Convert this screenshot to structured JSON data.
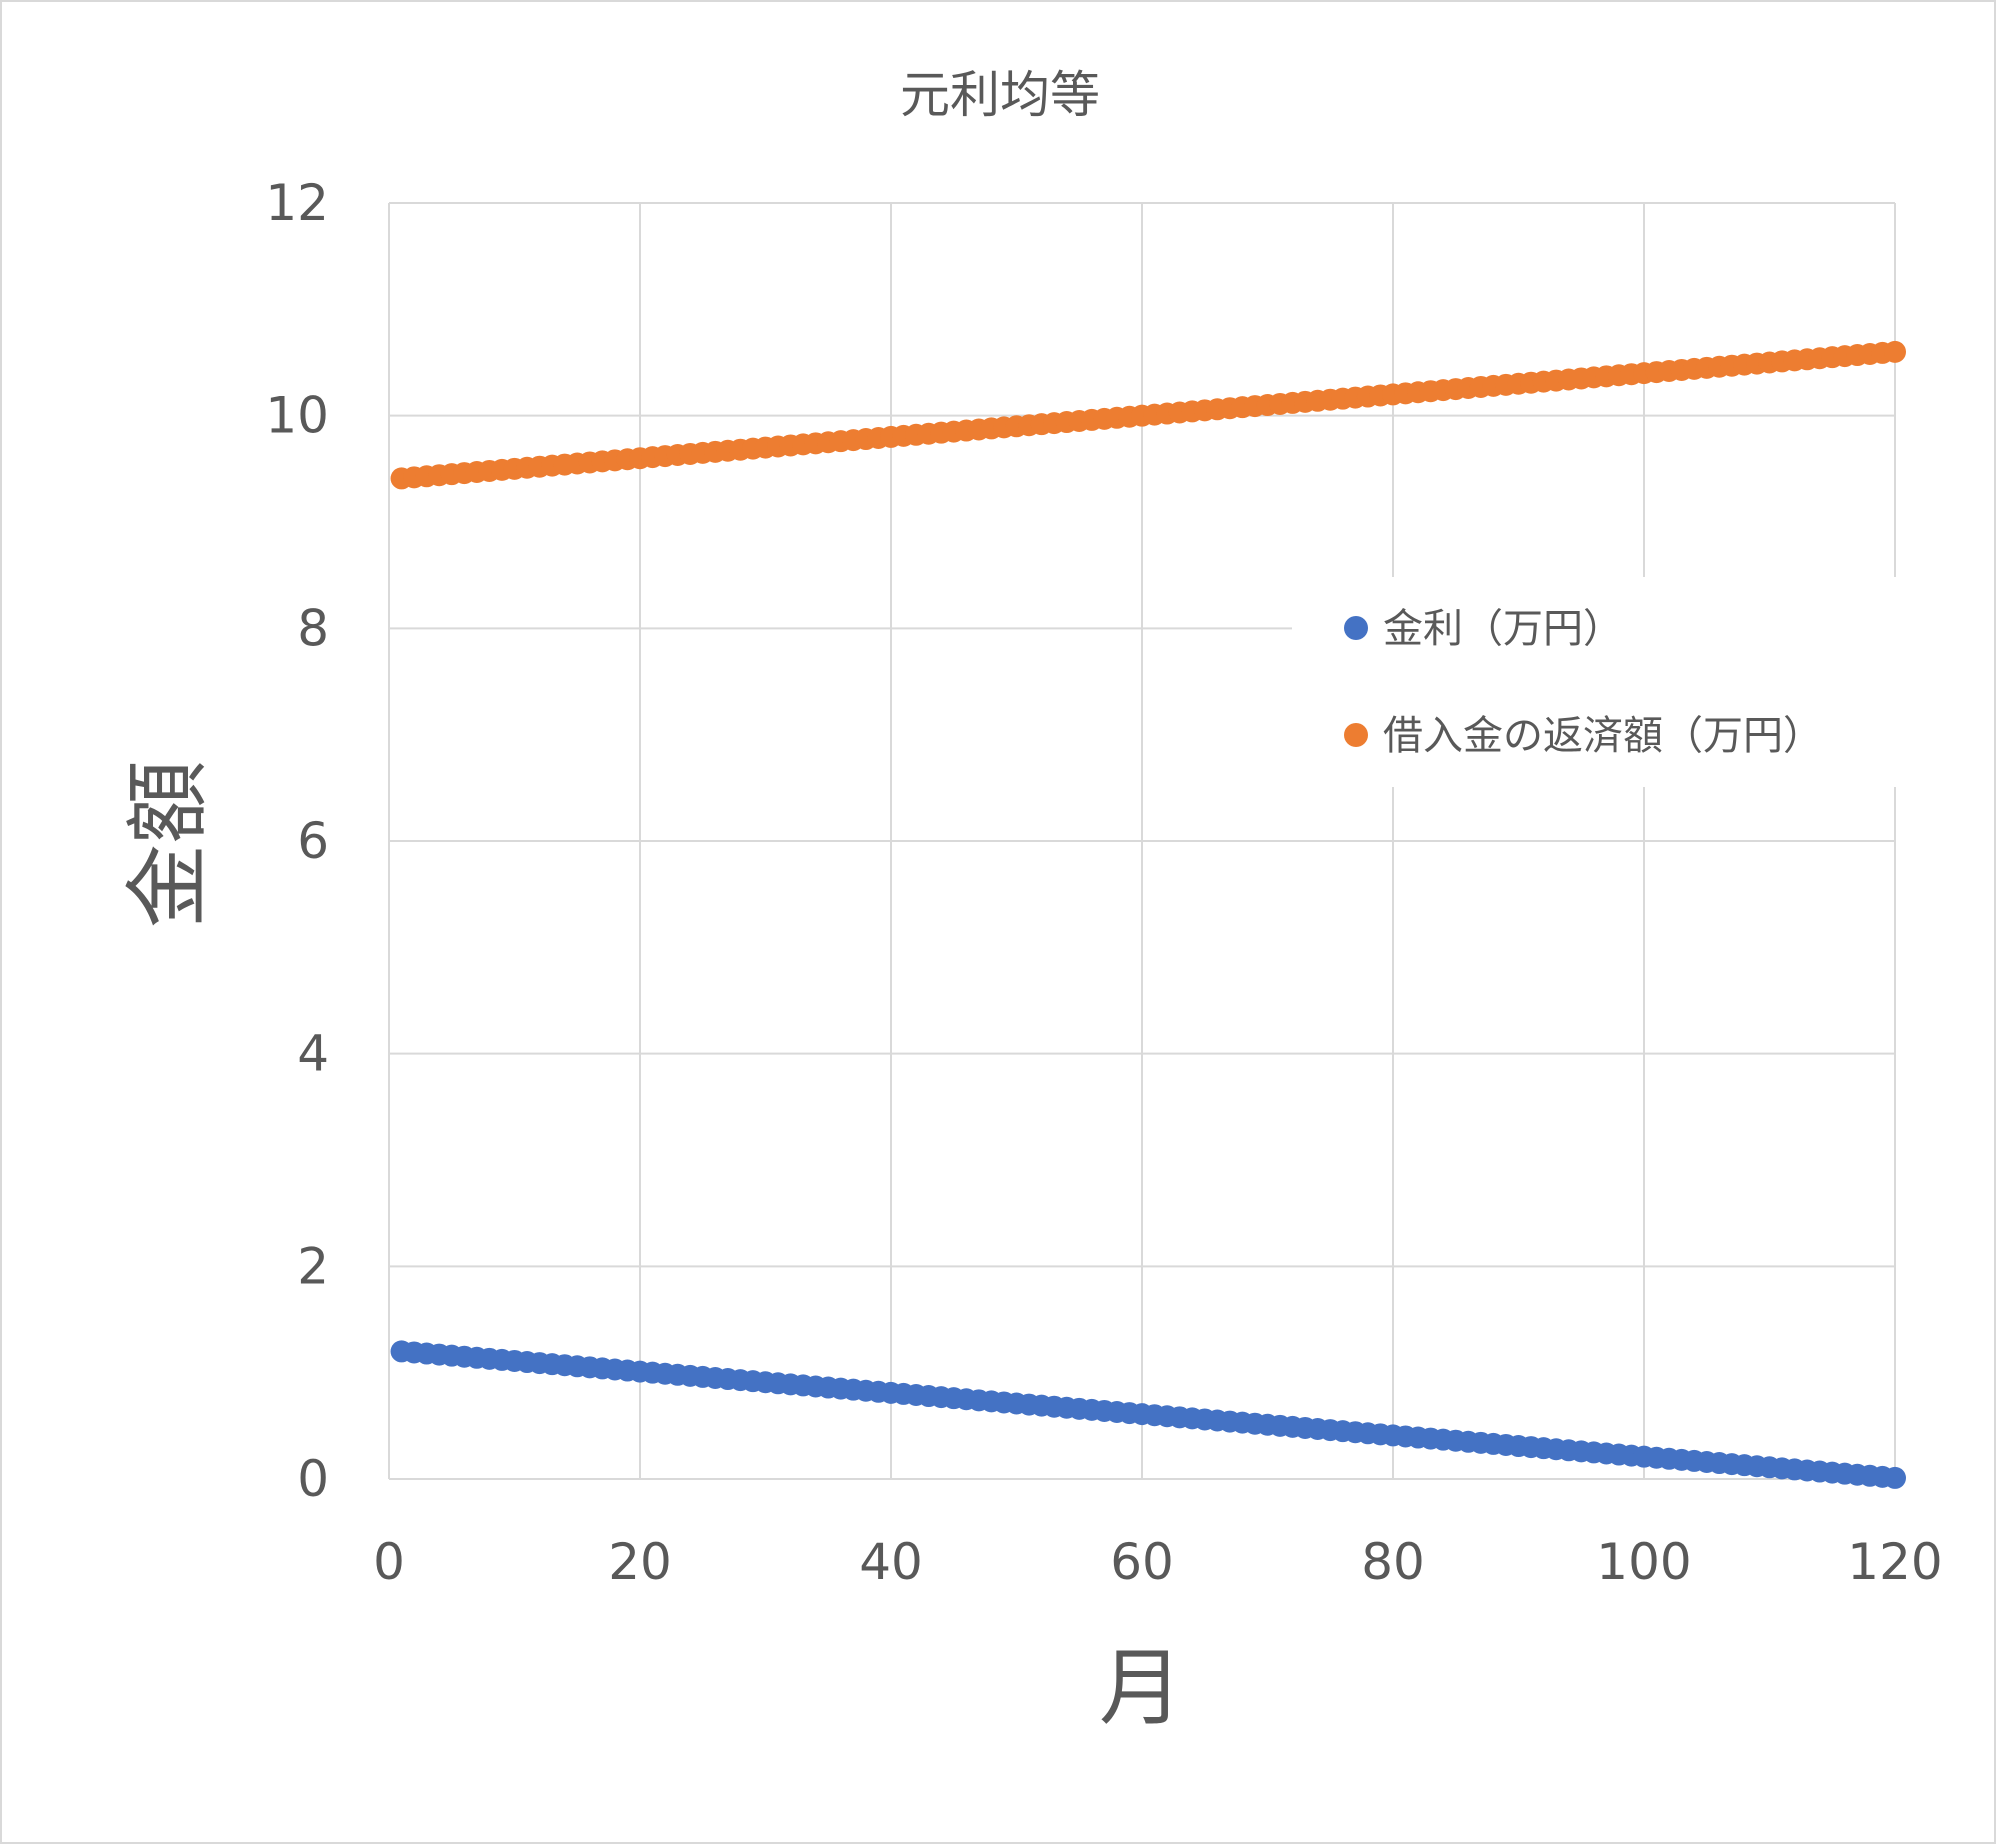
{
  "chart_data": {
    "type": "scatter",
    "title": "元利均等",
    "xlabel": "月",
    "ylabel": "金額",
    "xlim": [
      0,
      120
    ],
    "ylim": [
      0,
      12
    ],
    "x_ticks": [
      0,
      20,
      40,
      60,
      80,
      100,
      120
    ],
    "y_ticks": [
      0,
      2,
      4,
      6,
      8,
      10,
      12
    ],
    "x_tick_labels": [
      "0",
      "20",
      "40",
      "60",
      "80",
      "100",
      "120"
    ],
    "y_tick_labels": [
      "0",
      "2",
      "4",
      "6",
      "8",
      "10",
      "12"
    ],
    "grid": true,
    "legend_position": "right",
    "x": [
      1,
      2,
      3,
      4,
      5,
      6,
      7,
      8,
      9,
      10,
      11,
      12,
      13,
      14,
      15,
      16,
      17,
      18,
      19,
      20,
      21,
      22,
      23,
      24,
      25,
      26,
      27,
      28,
      29,
      30,
      31,
      32,
      33,
      34,
      35,
      36,
      37,
      38,
      39,
      40,
      41,
      42,
      43,
      44,
      45,
      46,
      47,
      48,
      49,
      50,
      51,
      52,
      53,
      54,
      55,
      56,
      57,
      58,
      59,
      60,
      61,
      62,
      63,
      64,
      65,
      66,
      67,
      68,
      69,
      70,
      71,
      72,
      73,
      74,
      75,
      76,
      77,
      78,
      79,
      80,
      81,
      82,
      83,
      84,
      85,
      86,
      87,
      88,
      89,
      90,
      91,
      92,
      93,
      94,
      95,
      96,
      97,
      98,
      99,
      100,
      101,
      102,
      103,
      104,
      105,
      106,
      107,
      108,
      109,
      110,
      111,
      112,
      113,
      114,
      115,
      116,
      117,
      118,
      119,
      120
    ],
    "series": [
      {
        "name": "金利（万円）",
        "color": "#4472c4",
        "values": [
          1.2,
          1.19,
          1.18,
          1.17,
          1.16,
          1.15,
          1.14,
          1.13,
          1.12,
          1.11,
          1.1,
          1.09,
          1.08,
          1.07,
          1.06,
          1.05,
          1.04,
          1.03,
          1.02,
          1.01,
          1.0,
          0.99,
          0.98,
          0.97,
          0.96,
          0.95,
          0.94,
          0.93,
          0.92,
          0.91,
          0.9,
          0.89,
          0.88,
          0.87,
          0.86,
          0.85,
          0.84,
          0.83,
          0.82,
          0.81,
          0.8,
          0.79,
          0.78,
          0.77,
          0.76,
          0.75,
          0.74,
          0.73,
          0.72,
          0.71,
          0.7,
          0.69,
          0.68,
          0.67,
          0.66,
          0.65,
          0.64,
          0.63,
          0.62,
          0.61,
          0.6,
          0.59,
          0.58,
          0.57,
          0.56,
          0.55,
          0.54,
          0.53,
          0.52,
          0.51,
          0.5,
          0.49,
          0.48,
          0.47,
          0.46,
          0.45,
          0.44,
          0.43,
          0.42,
          0.41,
          0.4,
          0.39,
          0.38,
          0.37,
          0.36,
          0.35,
          0.34,
          0.33,
          0.32,
          0.31,
          0.3,
          0.29,
          0.28,
          0.27,
          0.26,
          0.25,
          0.24,
          0.23,
          0.22,
          0.21,
          0.2,
          0.19,
          0.18,
          0.17,
          0.16,
          0.15,
          0.14,
          0.13,
          0.12,
          0.11,
          0.1,
          0.09,
          0.08,
          0.07,
          0.06,
          0.05,
          0.04,
          0.03,
          0.02,
          0.01
        ]
      },
      {
        "name": "借入金の返済額（万円）",
        "color": "#ed7d31",
        "values": [
          9.41,
          9.42,
          9.43,
          9.44,
          9.45,
          9.46,
          9.47,
          9.48,
          9.49,
          9.5,
          9.51,
          9.52,
          9.53,
          9.54,
          9.55,
          9.56,
          9.57,
          9.58,
          9.59,
          9.6,
          9.61,
          9.62,
          9.63,
          9.64,
          9.65,
          9.66,
          9.67,
          9.68,
          9.69,
          9.7,
          9.71,
          9.72,
          9.73,
          9.74,
          9.75,
          9.76,
          9.77,
          9.78,
          9.79,
          9.8,
          9.81,
          9.82,
          9.83,
          9.84,
          9.85,
          9.86,
          9.87,
          9.88,
          9.89,
          9.9,
          9.91,
          9.92,
          9.93,
          9.94,
          9.95,
          9.96,
          9.97,
          9.98,
          9.99,
          10.0,
          10.01,
          10.02,
          10.03,
          10.04,
          10.05,
          10.06,
          10.07,
          10.08,
          10.09,
          10.1,
          10.11,
          10.12,
          10.13,
          10.14,
          10.15,
          10.16,
          10.17,
          10.18,
          10.19,
          10.2,
          10.21,
          10.22,
          10.23,
          10.24,
          10.25,
          10.26,
          10.27,
          10.28,
          10.29,
          10.3,
          10.31,
          10.32,
          10.33,
          10.34,
          10.35,
          10.36,
          10.37,
          10.38,
          10.39,
          10.4,
          10.41,
          10.42,
          10.43,
          10.44,
          10.45,
          10.46,
          10.47,
          10.48,
          10.49,
          10.5,
          10.51,
          10.52,
          10.53,
          10.54,
          10.55,
          10.56,
          10.57,
          10.58,
          10.59,
          10.6
        ]
      }
    ]
  }
}
